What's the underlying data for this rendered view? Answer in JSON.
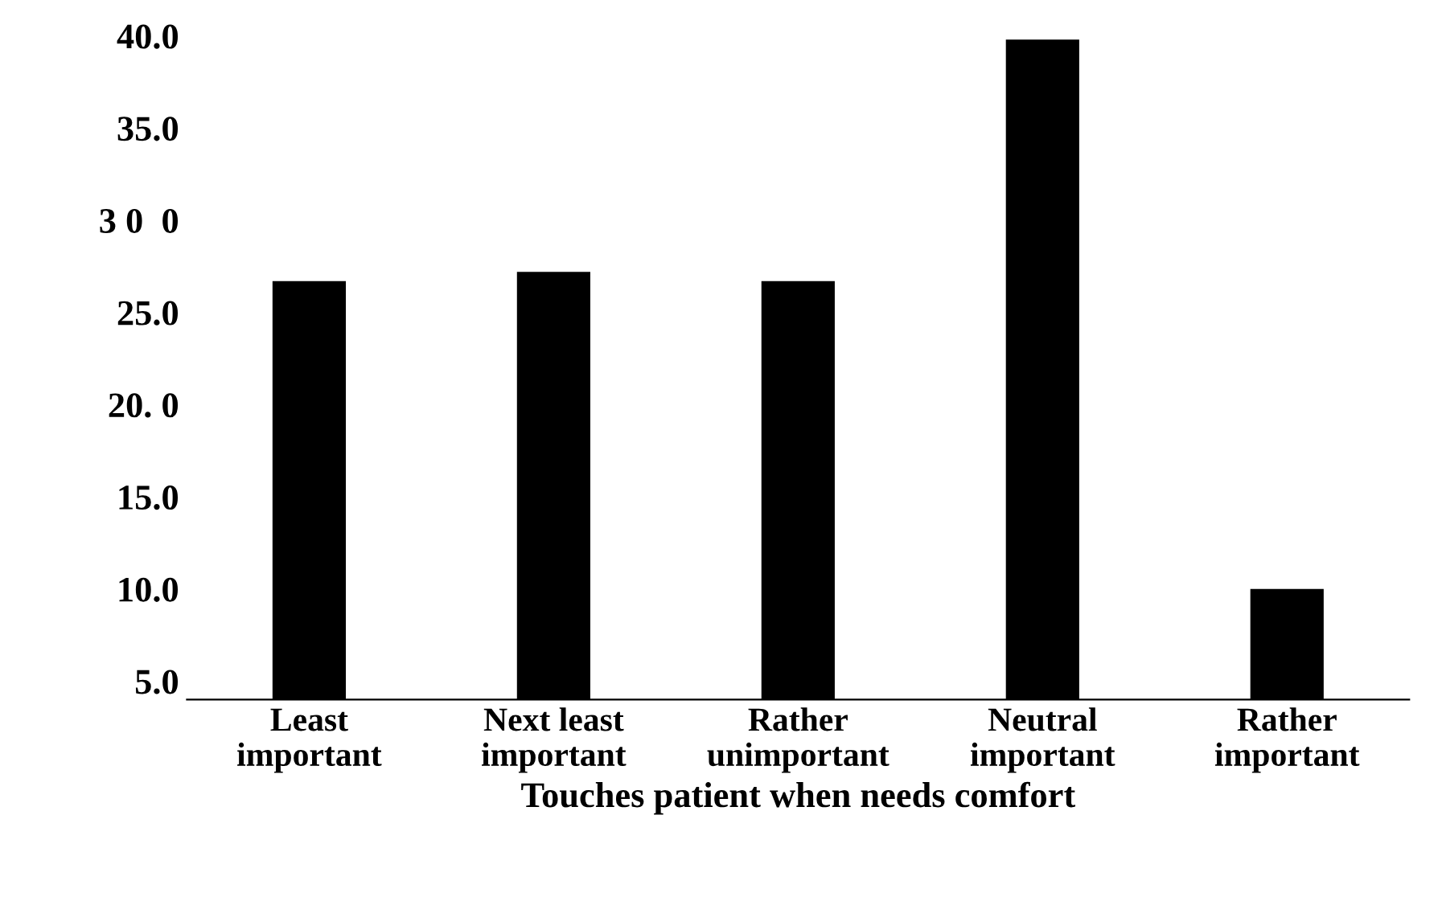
{
  "chart_data": {
    "type": "bar",
    "xlabel": "Touches patient when needs comfort",
    "categories": [
      "Least\nimportant",
      "Next least\nimportant",
      "Rather\nunimportant",
      "Neutral\nimportant",
      "Rather\nimportant"
    ],
    "values": [
      26.7,
      27.2,
      26.7,
      39.8,
      10.0
    ],
    "color": "#000000",
    "ylim": [
      4,
      40
    ],
    "yticks": [
      {
        "value": 5,
        "label": "5.0"
      },
      {
        "value": 10,
        "label": "10.0"
      },
      {
        "value": 15,
        "label": "15.0"
      },
      {
        "value": 20,
        "label": "20. 0"
      },
      {
        "value": 25,
        "label": "25.0"
      },
      {
        "value": 30,
        "label": "3 0  0"
      },
      {
        "value": 35,
        "label": "35.0"
      },
      {
        "value": 40,
        "label": "40.0"
      }
    ],
    "grid": false
  }
}
